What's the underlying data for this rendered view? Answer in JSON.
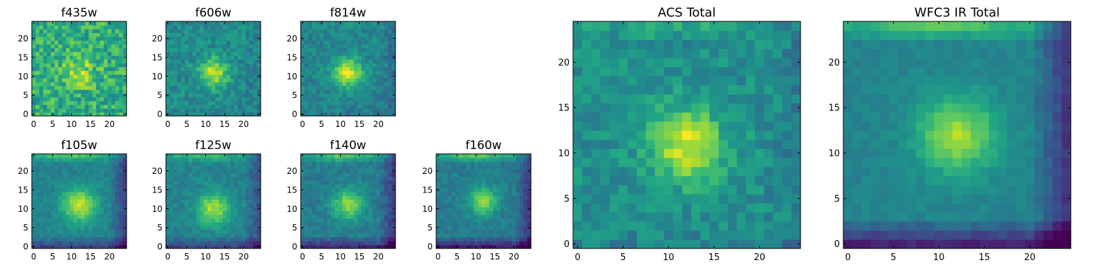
{
  "chart_data": [
    {
      "type": "heatmap",
      "title": "f435w",
      "xticks": [
        0,
        5,
        10,
        15,
        20
      ],
      "yticks": [
        0,
        5,
        10,
        15,
        20
      ],
      "xlim": [
        0,
        25
      ],
      "ylim": [
        0,
        25
      ],
      "colormap": "viridis",
      "grid": false,
      "peak": [
        12,
        11
      ],
      "sigma": 3.0,
      "amplitude": 0.25,
      "background": 0.62,
      "noise": 0.35,
      "top_glow": 0.0,
      "right_dark": 0.0,
      "bottom_dark": 0.0
    },
    {
      "type": "heatmap",
      "title": "f606w",
      "xticks": [
        0,
        5,
        10,
        15,
        20
      ],
      "yticks": [
        0,
        5,
        10,
        15,
        20
      ],
      "xlim": [
        0,
        25
      ],
      "ylim": [
        0,
        25
      ],
      "colormap": "viridis",
      "grid": false,
      "peak": [
        12,
        11
      ],
      "sigma": 2.6,
      "amplitude": 0.45,
      "background": 0.48,
      "noise": 0.22,
      "top_glow": 0.0,
      "right_dark": 0.05,
      "bottom_dark": 0.05
    },
    {
      "type": "heatmap",
      "title": "f814w",
      "xticks": [
        0,
        5,
        10,
        15,
        20
      ],
      "yticks": [
        0,
        5,
        10,
        15,
        20
      ],
      "xlim": [
        0,
        25
      ],
      "ylim": [
        0,
        25
      ],
      "colormap": "viridis",
      "grid": false,
      "peak": [
        12,
        11
      ],
      "sigma": 2.6,
      "amplitude": 0.5,
      "background": 0.46,
      "noise": 0.18,
      "top_glow": 0.05,
      "right_dark": 0.1,
      "bottom_dark": 0.05
    },
    {
      "type": "heatmap",
      "title": "f105w",
      "xticks": [
        0,
        5,
        10,
        15,
        20
      ],
      "yticks": [
        0,
        5,
        10,
        15,
        20
      ],
      "xlim": [
        0,
        25
      ],
      "ylim": [
        0,
        25
      ],
      "colormap": "viridis",
      "grid": false,
      "peak": [
        12,
        11
      ],
      "sigma": 3.2,
      "amplitude": 0.45,
      "background": 0.45,
      "noise": 0.12,
      "top_glow": 0.45,
      "right_dark": 0.3,
      "bottom_dark": 0.25
    },
    {
      "type": "heatmap",
      "title": "f125w",
      "xticks": [
        0,
        5,
        10,
        15,
        20
      ],
      "yticks": [
        0,
        5,
        10,
        15,
        20
      ],
      "xlim": [
        0,
        25
      ],
      "ylim": [
        0,
        25
      ],
      "colormap": "viridis",
      "grid": false,
      "peak": [
        12,
        10
      ],
      "sigma": 3.0,
      "amplitude": 0.42,
      "background": 0.45,
      "noise": 0.14,
      "top_glow": 0.4,
      "right_dark": 0.25,
      "bottom_dark": 0.25
    },
    {
      "type": "heatmap",
      "title": "f140w",
      "xticks": [
        0,
        5,
        10,
        15,
        20
      ],
      "yticks": [
        0,
        5,
        10,
        15,
        20
      ],
      "xlim": [
        0,
        25
      ],
      "ylim": [
        0,
        25
      ],
      "colormap": "viridis",
      "grid": false,
      "peak": [
        12,
        11
      ],
      "sigma": 2.8,
      "amplitude": 0.42,
      "background": 0.42,
      "noise": 0.14,
      "top_glow": 0.5,
      "right_dark": 0.3,
      "bottom_dark": 0.3
    },
    {
      "type": "heatmap",
      "title": "f160w",
      "xticks": [
        0,
        5,
        10,
        15,
        20
      ],
      "yticks": [
        0,
        5,
        10,
        15,
        20
      ],
      "xlim": [
        0,
        25
      ],
      "ylim": [
        0,
        25
      ],
      "colormap": "viridis",
      "grid": false,
      "peak": [
        12,
        12
      ],
      "sigma": 2.6,
      "amplitude": 0.4,
      "background": 0.42,
      "noise": 0.12,
      "top_glow": 0.5,
      "right_dark": 0.3,
      "bottom_dark": 0.35
    },
    {
      "type": "heatmap",
      "title": "ACS Total",
      "xticks": [
        0,
        5,
        10,
        15,
        20
      ],
      "yticks": [
        0,
        5,
        10,
        15,
        20
      ],
      "xlim": [
        0,
        25
      ],
      "ylim": [
        0,
        25
      ],
      "colormap": "viridis",
      "grid": false,
      "peak": [
        12,
        11
      ],
      "sigma": 2.8,
      "amplitude": 0.45,
      "background": 0.5,
      "noise": 0.2,
      "top_glow": 0.15,
      "right_dark": 0.08,
      "bottom_dark": 0.05
    },
    {
      "type": "heatmap",
      "title": "WFC3 IR Total",
      "xticks": [
        0,
        5,
        10,
        15,
        20
      ],
      "yticks": [
        0,
        5,
        10,
        15,
        20
      ],
      "xlim": [
        0,
        25
      ],
      "ylim": [
        0,
        25
      ],
      "colormap": "viridis",
      "grid": false,
      "peak": [
        12,
        12
      ],
      "sigma": 3.0,
      "amplitude": 0.42,
      "background": 0.45,
      "noise": 0.08,
      "top_glow": 0.5,
      "right_dark": 0.35,
      "bottom_dark": 0.35
    }
  ]
}
